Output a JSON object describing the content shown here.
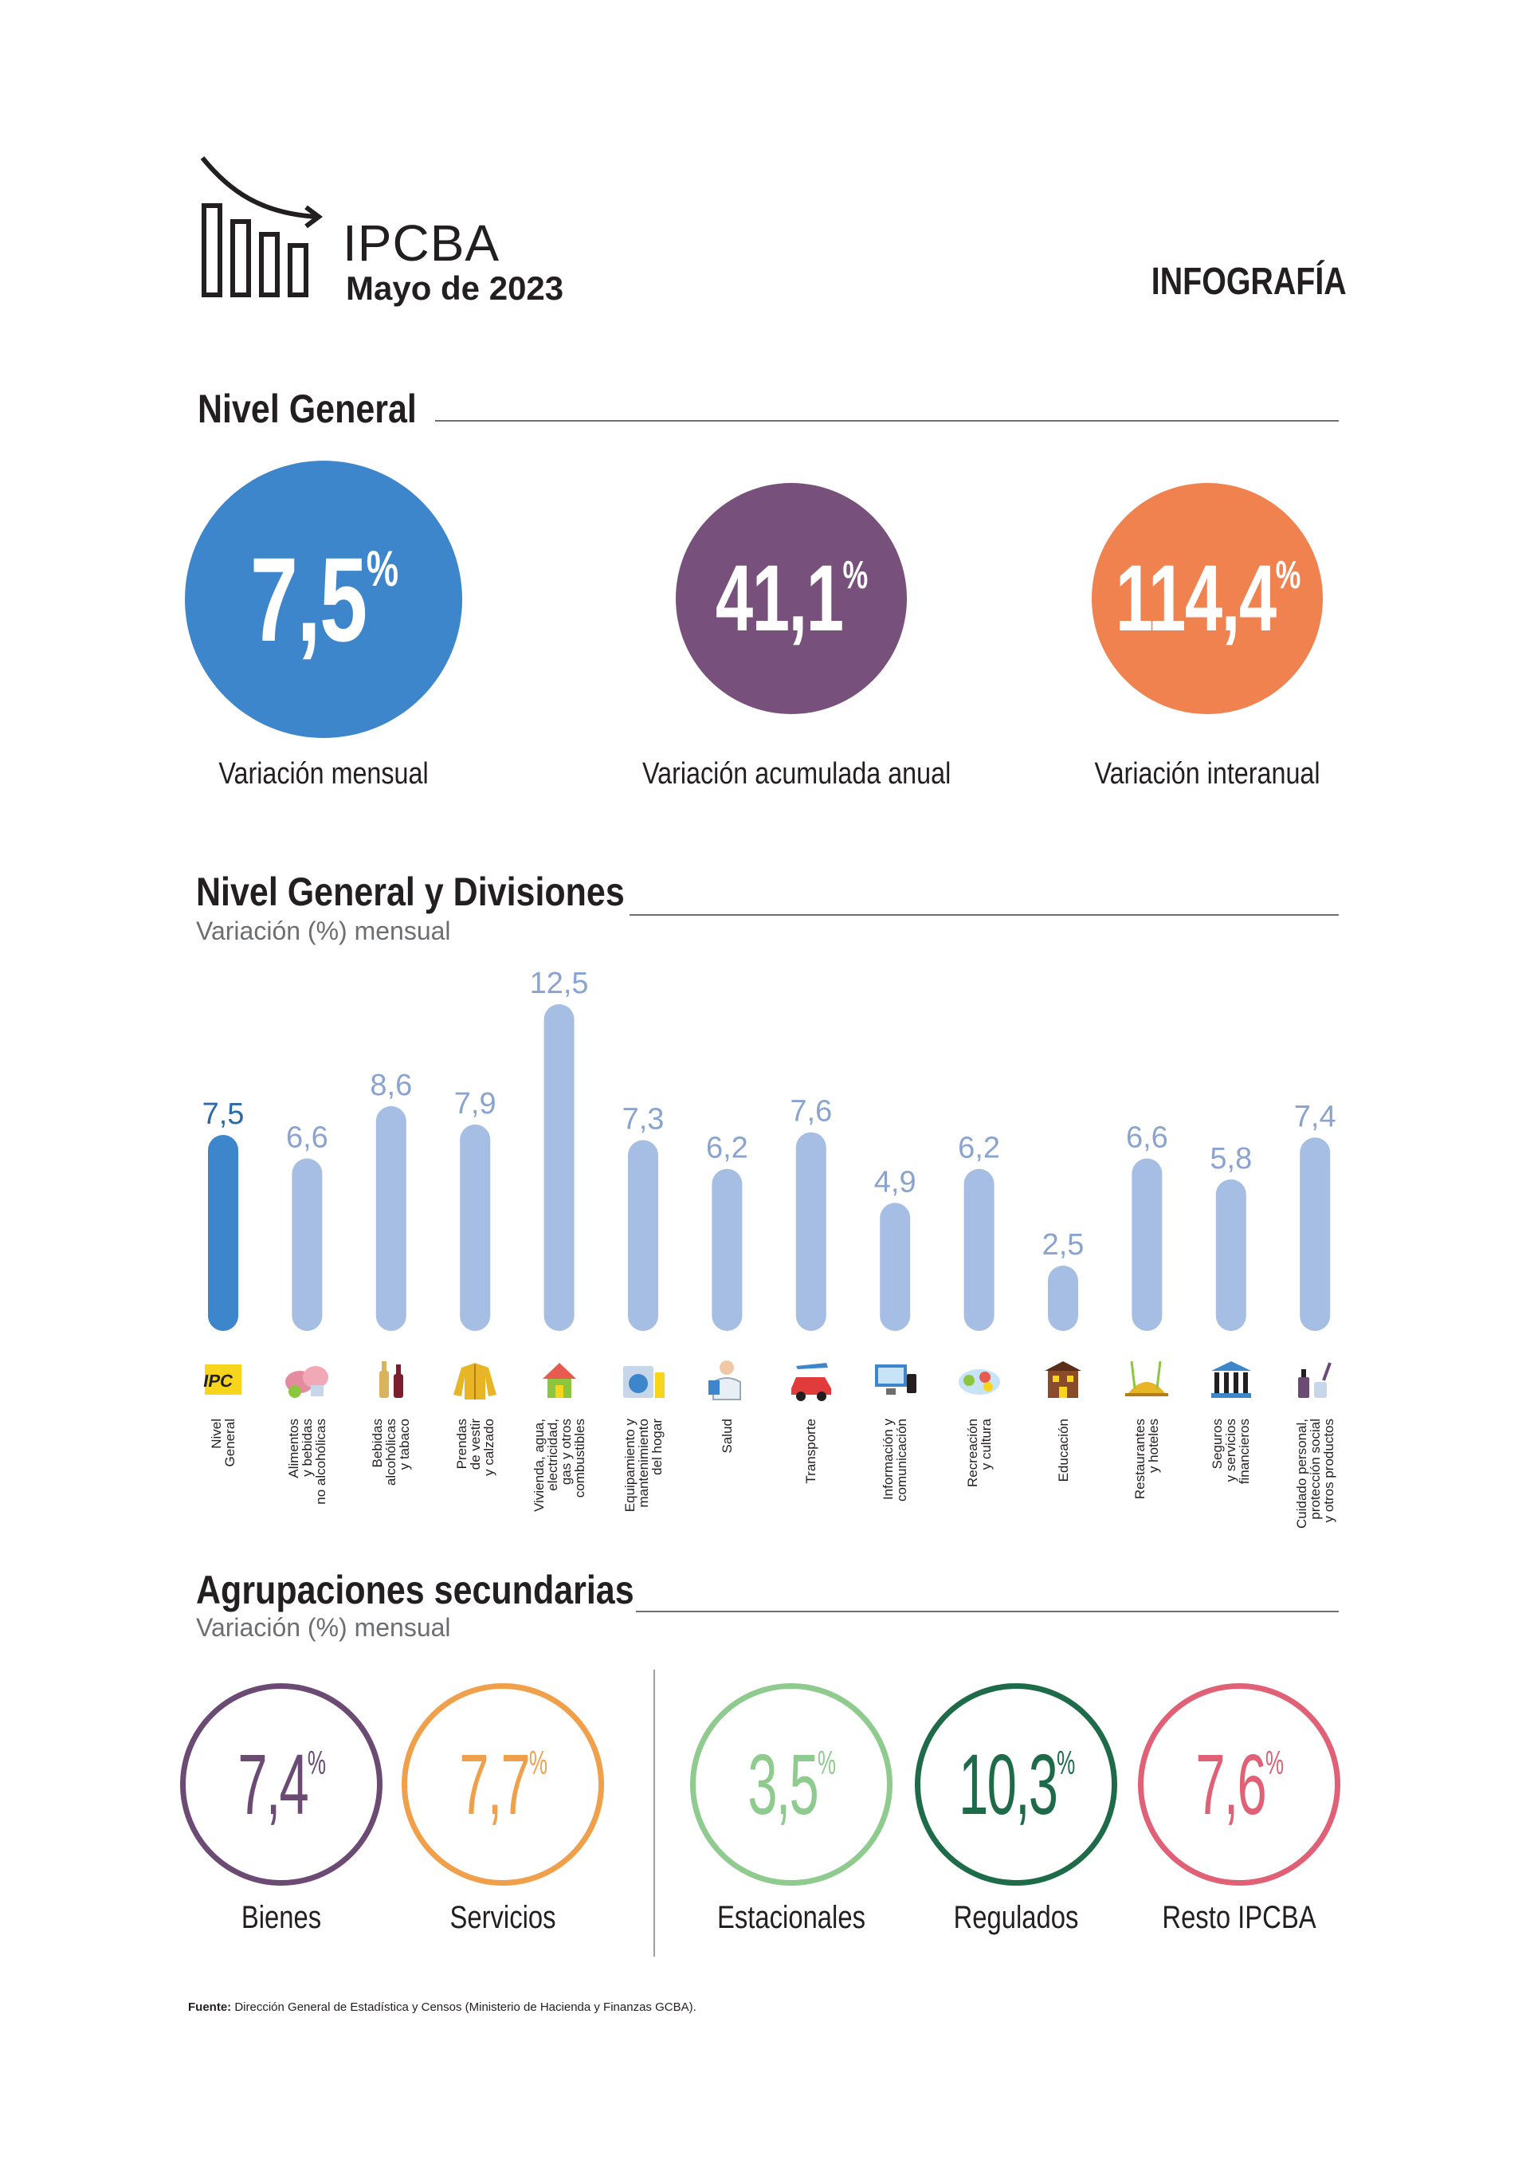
{
  "header": {
    "title": "IPCBA",
    "subtitle": "Mayo de 2023",
    "tag": "INFOGRAFÍA"
  },
  "nivel_general": {
    "title": "Nivel General",
    "items": [
      {
        "value": "7,5",
        "unit": "%",
        "label": "Variación mensual",
        "color": "#3e86cc"
      },
      {
        "value": "41,1",
        "unit": "%",
        "label": "Variación acumulada anual",
        "color": "#77507b"
      },
      {
        "value": "114,4",
        "unit": "%",
        "label": "Variación interanual",
        "color": "#f08250"
      }
    ]
  },
  "divisiones": {
    "title": "Nivel General y Divisiones",
    "subtitle": "Variación (%) mensual"
  },
  "chart_data": {
    "type": "bar",
    "categories": [
      "Nivel General",
      "Alimentos y bebidas no alcohólicas",
      "Bebidas alcohólicas y tabaco",
      "Prendas de vestir y calzado",
      "Vivienda, agua, electricidad, gas y otros combustibles",
      "Equipamiento y mantenimiento del hogar",
      "Salud",
      "Transporte",
      "Información y comunicación",
      "Recreación y cultura",
      "Educación",
      "Restaurantes y hoteles",
      "Seguros y servicios financieros",
      "Cuidado personal, protección social y otros productos"
    ],
    "values": [
      7.5,
      6.6,
      8.6,
      7.9,
      12.5,
      7.3,
      6.2,
      7.6,
      4.9,
      6.2,
      2.5,
      6.6,
      5.8,
      7.4
    ],
    "value_labels": [
      "7,5",
      "6,6",
      "8,6",
      "7,9",
      "12,5",
      "7,3",
      "6,2",
      "7,6",
      "4,9",
      "6,2",
      "2,5",
      "6,6",
      "5,8",
      "7,4"
    ],
    "highlight_color": "#3e86cc",
    "bar_color": "#a6bee3",
    "label_color": "#8aa4cf",
    "ylim": [
      0,
      12.5
    ]
  },
  "categories_display": [
    "Nivel\nGeneral",
    "Alimentos\ny bebidas\nno alcohólicas",
    "Bebidas\nalcohólicas\ny tabaco",
    "Prendas\nde vestir\ny calzado",
    "Vivienda, agua,\nelectricidad,\ngas y otros\ncombustibles",
    "Equipamiento y\nmantenimiento\ndel hogar",
    "Salud",
    "Transporte",
    "Información y\ncomunicación",
    "Recreación\ny cultura",
    "Educación",
    "Restaurantes\ny hoteles",
    "Seguros\ny servicios\nfinancieros",
    "Cuidado personal,\nprotección social\ny otros productos"
  ],
  "icons": [
    "ipc-icon",
    "food-icon",
    "bottle-icon",
    "jacket-icon",
    "house-icon",
    "appliance-icon",
    "doctor-icon",
    "car-icon",
    "computer-icon",
    "recreation-icon",
    "school-icon",
    "restaurant-icon",
    "bank-icon",
    "cosmetics-icon"
  ],
  "agrupaciones": {
    "title": "Agrupaciones secundarias",
    "subtitle": "Variación (%) mensual",
    "items": [
      {
        "value": "7,4",
        "unit": "%",
        "label": "Bienes",
        "color": "#6b4a73"
      },
      {
        "value": "7,7",
        "unit": "%",
        "label": "Servicios",
        "color": "#f0a04b"
      },
      {
        "value": "3,5",
        "unit": "%",
        "label": "Estacionales",
        "color": "#8fcb8f"
      },
      {
        "value": "10,3",
        "unit": "%",
        "label": "Regulados",
        "color": "#1e6b4a"
      },
      {
        "value": "7,6",
        "unit": "%",
        "label": "Resto IPCBA",
        "color": "#e06076"
      }
    ]
  },
  "source": {
    "bold": "Fuente:",
    "text": "Dirección General de Estadística y Censos (Ministerio de Hacienda y Finanzas GCBA)."
  }
}
